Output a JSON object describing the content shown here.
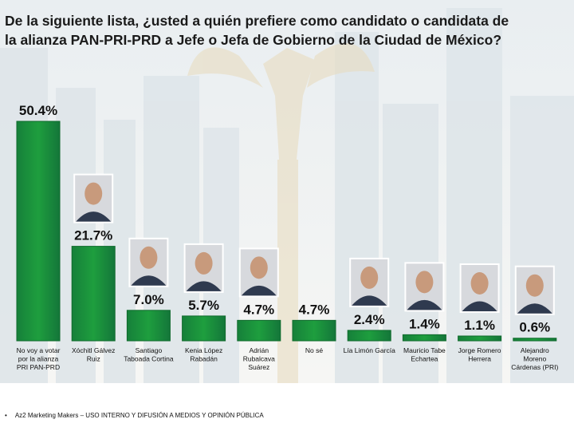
{
  "title": {
    "line1": "De la siguiente lista, ¿usted a quién prefiere como candidato o candidata de",
    "line2": "la alianza PAN-PRI-PRD a Jefe o Jefa de Gobierno de la Ciudad de México?"
  },
  "chart_data": {
    "type": "bar",
    "categories": [
      "No voy a votar por la alianza PRI PAN-PRD",
      "Xóchitl Gálvez Ruiz",
      "Santiago Taboada Cortina",
      "Kenia López Rabadán",
      "Adrián Rubalcava Suárez",
      "No sé",
      "Lía Limón García",
      "Mauricio Tabe Echartea",
      "Jorge Romero Herrera",
      "Alejandro Moreno Cárdenas (PRI)"
    ],
    "category_lines": [
      [
        "No voy a votar",
        "por la alianza",
        "PRI  PAN-PRD"
      ],
      [
        "Xóchitl Gálvez",
        "Ruiz"
      ],
      [
        "Santiago",
        "Taboada Cortina"
      ],
      [
        "Kenia López",
        "Rabadán"
      ],
      [
        "Adrián",
        "Rubalcava",
        "Suárez"
      ],
      [
        "No sé"
      ],
      [
        "Lía Limón García"
      ],
      [
        "Mauricio Tabe",
        "Echartea"
      ],
      [
        "Jorge Romero",
        "Herrera"
      ],
      [
        "Alejandro",
        "Moreno",
        "Cárdenas (PRI)"
      ]
    ],
    "values": [
      50.4,
      21.7,
      7.0,
      5.7,
      4.7,
      4.7,
      2.4,
      1.4,
      1.1,
      0.6
    ],
    "value_labels": [
      "50.4%",
      "21.7%",
      "7.0%",
      "5.7%",
      "4.7%",
      "4.7%",
      "2.4%",
      "1.4%",
      "1.1%",
      "0.6%"
    ],
    "photos": [
      false,
      true,
      true,
      true,
      true,
      false,
      true,
      true,
      true,
      true
    ],
    "bar_color": "#1e9e3e",
    "ylim": [
      0,
      50.4
    ],
    "grid": false,
    "legend": "none"
  },
  "footer": {
    "bullet": "•",
    "text": "Az2 Marketing Makers – USO INTERNO Y DIFUSIÓN A MEDIOS Y OPINIÓN PÚBLICA"
  }
}
